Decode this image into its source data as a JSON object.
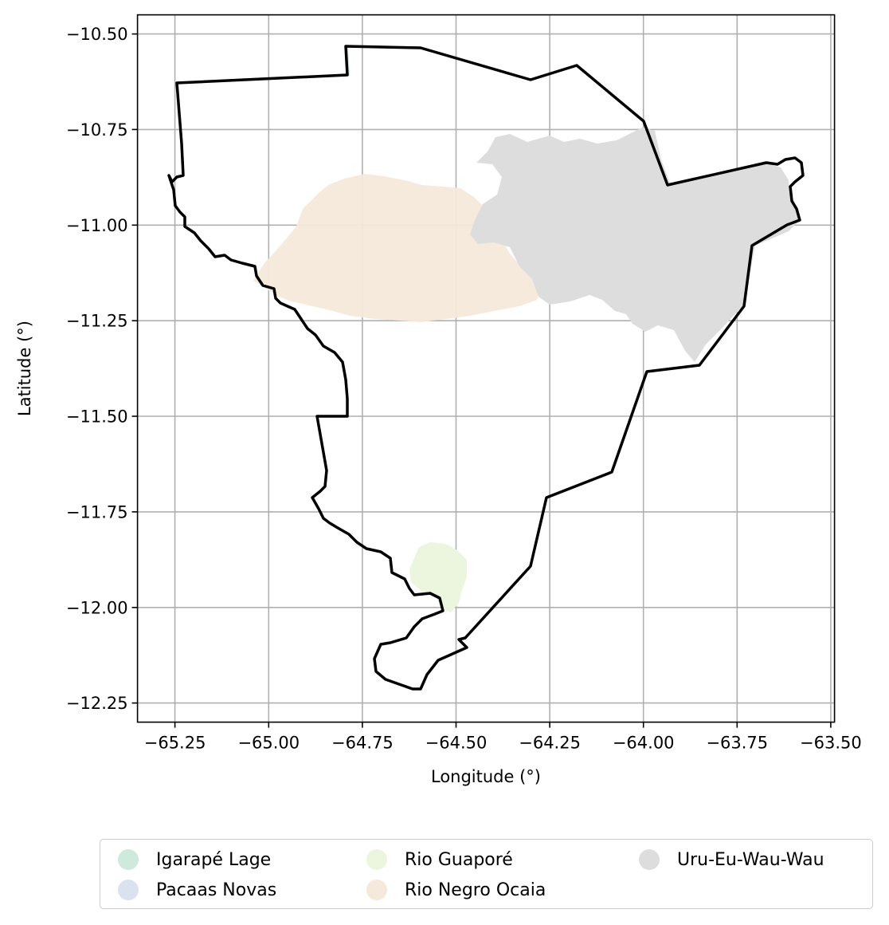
{
  "map": {
    "xlabel": "Longitude (°)",
    "ylabel": "Latitude (°)",
    "x_range": [
      -65.35,
      -63.49
    ],
    "y_range": [
      -12.3,
      -10.45
    ],
    "x_ticks": [
      -65.25,
      -65.0,
      -64.75,
      -64.5,
      -64.25,
      -64.0,
      -63.75,
      -63.5
    ],
    "y_ticks": [
      -10.5,
      -10.75,
      -11.0,
      -11.25,
      -11.5,
      -11.75,
      -12.0,
      -12.25
    ],
    "x_tick_labels": [
      "−65.25",
      "−65.00",
      "−64.75",
      "−64.50",
      "−64.25",
      "−64.00",
      "−63.75",
      "−63.50"
    ],
    "y_tick_labels": [
      "−10.50",
      "−10.75",
      "−11.00",
      "−11.25",
      "−11.50",
      "−11.75",
      "−12.00",
      "−12.25"
    ],
    "grid": true,
    "boundary_color": "#000000",
    "regions": [
      {
        "name": "Igarapé Lage",
        "color": "#cdeadc",
        "visible_area": "tiny"
      },
      {
        "name": "Pacaas Novas",
        "color": "#dbe2ef",
        "visible_area": "none"
      },
      {
        "name": "Rio Guaporé",
        "color": "#ecf6de",
        "center": [
          -64.54,
          -11.9
        ]
      },
      {
        "name": "Rio Negro Ocaia",
        "color": "#f4e9da",
        "center": [
          -64.7,
          -11.06
        ]
      },
      {
        "name": "Uru-Eu-Wau-Wau",
        "color": "#dddddd",
        "center": [
          -64.12,
          -11.02
        ]
      }
    ]
  },
  "legend": {
    "placement": "bottom-center",
    "columns": 3,
    "items": [
      {
        "label": "Igarapé Lage",
        "color": "#cdeadc"
      },
      {
        "label": "Pacaas Novas",
        "color": "#dbe2ef"
      },
      {
        "label": "Rio Guaporé",
        "color": "#ecf6de"
      },
      {
        "label": "Rio Negro Ocaia",
        "color": "#f4e9da"
      },
      {
        "label": "Uru-Eu-Wau-Wau",
        "color": "#dddddd"
      }
    ]
  }
}
